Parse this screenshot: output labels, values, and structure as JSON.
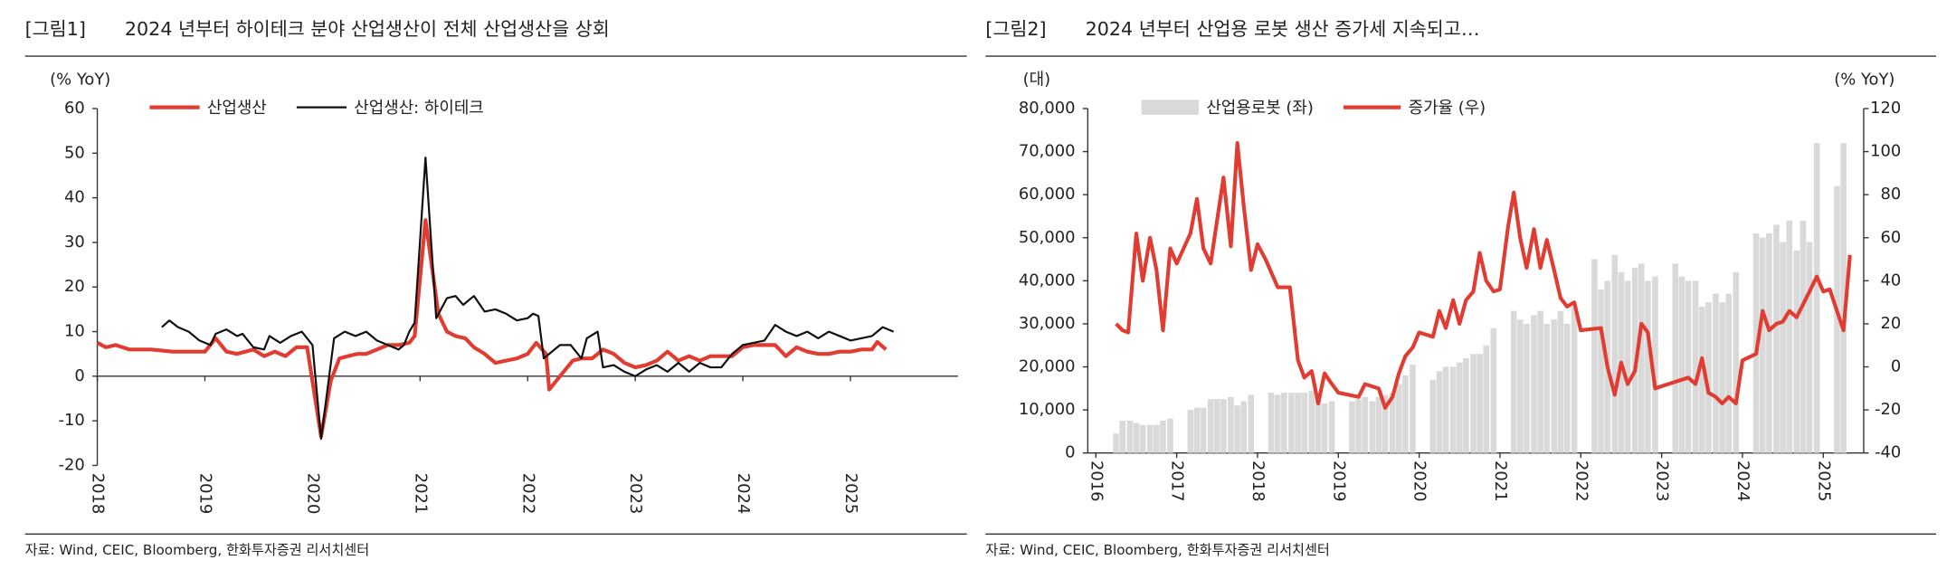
{
  "chart_data": [
    {
      "type": "line",
      "label": "[그림1]",
      "title": "2024 년부터 하이테크 분야 산업생산이 전체 산업생산을 상회",
      "y_label": "(% YoY)",
      "source": "자료: Wind, CEIC, Bloomberg, 한화투자증권 리서치센터",
      "xlim": [
        2018,
        2026
      ],
      "xticks": [
        2018,
        2019,
        2020,
        2021,
        2022,
        2023,
        2024,
        2025
      ],
      "ylim": [
        -20,
        60
      ],
      "yticks": [
        -20,
        -10,
        0,
        10,
        20,
        30,
        40,
        50,
        60
      ],
      "series": [
        {
          "name": "산업생산",
          "color": "#e03c31",
          "type": "line",
          "x": [
            2018.0,
            2018.08,
            2018.17,
            2018.3,
            2018.5,
            2018.7,
            2018.9,
            2019.0,
            2019.1,
            2019.2,
            2019.3,
            2019.45,
            2019.55,
            2019.65,
            2019.75,
            2019.85,
            2019.95,
            2020.08,
            2020.17,
            2020.25,
            2020.33,
            2020.42,
            2020.5,
            2020.6,
            2020.7,
            2020.8,
            2020.9,
            2020.95,
            2021.05,
            2021.17,
            2021.25,
            2021.33,
            2021.42,
            2021.5,
            2021.6,
            2021.7,
            2021.8,
            2021.9,
            2022.0,
            2022.08,
            2022.17,
            2022.2,
            2022.3,
            2022.42,
            2022.5,
            2022.6,
            2022.7,
            2022.8,
            2022.9,
            2023.0,
            2023.1,
            2023.2,
            2023.3,
            2023.4,
            2023.5,
            2023.6,
            2023.7,
            2023.8,
            2023.9,
            2024.0,
            2024.1,
            2024.2,
            2024.3,
            2024.4,
            2024.5,
            2024.6,
            2024.7,
            2024.8,
            2024.9,
            2025.0,
            2025.1,
            2025.2,
            2025.25,
            2025.33
          ],
          "values": [
            7.5,
            6.5,
            7,
            6,
            6,
            5.5,
            5.5,
            5.5,
            8.5,
            5.5,
            5,
            6,
            4.5,
            5.5,
            4.5,
            6.5,
            6.5,
            -13.5,
            -1,
            4,
            4.5,
            5,
            5,
            6,
            7,
            7,
            7.5,
            9,
            35,
            14,
            10,
            9,
            8.5,
            6.5,
            5,
            3,
            3.5,
            4,
            5,
            7.5,
            5,
            -3,
            0,
            3.5,
            4,
            4,
            6,
            5,
            3,
            2,
            2.5,
            3.5,
            5.5,
            3.5,
            4.5,
            3.5,
            4.5,
            4.5,
            4.5,
            6.5,
            7,
            7,
            7,
            4.5,
            6.5,
            5.5,
            5,
            5,
            5.5,
            5.5,
            6,
            6,
            7.7,
            6
          ]
        },
        {
          "name": "산업생산: 하이테크",
          "color": "#111111",
          "type": "line",
          "x": [
            2018.6,
            2018.67,
            2018.75,
            2018.85,
            2018.95,
            2019.05,
            2019.1,
            2019.2,
            2019.3,
            2019.35,
            2019.45,
            2019.55,
            2019.6,
            2019.7,
            2019.8,
            2019.9,
            2020.0,
            2020.08,
            2020.2,
            2020.3,
            2020.4,
            2020.5,
            2020.6,
            2020.7,
            2020.8,
            2020.85,
            2020.9,
            2020.95,
            2021.05,
            2021.15,
            2021.25,
            2021.33,
            2021.4,
            2021.5,
            2021.6,
            2021.7,
            2021.8,
            2021.9,
            2022.0,
            2022.05,
            2022.1,
            2022.15,
            2022.3,
            2022.4,
            2022.5,
            2022.55,
            2022.65,
            2022.7,
            2022.8,
            2022.9,
            2023.0,
            2023.1,
            2023.2,
            2023.3,
            2023.4,
            2023.5,
            2023.6,
            2023.7,
            2023.8,
            2023.9,
            2024.0,
            2024.1,
            2024.2,
            2024.3,
            2024.4,
            2024.5,
            2024.6,
            2024.7,
            2024.8,
            2024.9,
            2025.0,
            2025.1,
            2025.2,
            2025.3,
            2025.4
          ],
          "values": [
            11,
            12.5,
            11,
            10,
            8,
            7,
            9.5,
            10.5,
            9,
            9.5,
            6.5,
            6,
            9,
            7.5,
            9,
            10,
            7,
            -14,
            8.5,
            10,
            9,
            10,
            8,
            7,
            6,
            7,
            10,
            12,
            49,
            13,
            17.5,
            18,
            16,
            18,
            14.5,
            15,
            14,
            12.5,
            13,
            14,
            13.5,
            4,
            7,
            7,
            4,
            8.5,
            10,
            2,
            2.5,
            1,
            0,
            1.5,
            2.5,
            1,
            3,
            1,
            3,
            2,
            2,
            5,
            7,
            7.5,
            8,
            11.5,
            10,
            9,
            10,
            8.5,
            10,
            9,
            8,
            8.5,
            9,
            11,
            10
          ]
        }
      ]
    },
    {
      "type": "combo",
      "label": "[그림2]",
      "title": "2024 년부터 산업용 로봇 생산 증가세 지속되고…",
      "y_label": "(대)",
      "y2_label": "(% YoY)",
      "source": "자료: Wind, CEIC, Bloomberg, 한화투자증권 리서치센터",
      "xlim": [
        2015.9,
        2025.5
      ],
      "xticks": [
        2016,
        2017,
        2018,
        2019,
        2020,
        2021,
        2022,
        2023,
        2024,
        2025
      ],
      "ylim": [
        0,
        80000
      ],
      "yticks": [
        0,
        {
          "value": 10000,
          "label": "10,000"
        },
        {
          "value": 20000,
          "label": "20,000"
        },
        {
          "value": 30000,
          "label": "30,000"
        },
        {
          "value": 40000,
          "label": "40,000"
        },
        {
          "value": 50000,
          "label": "50,000"
        },
        {
          "value": 60000,
          "label": "60,000"
        },
        {
          "value": 70000,
          "label": "70,000"
        },
        {
          "value": 80000,
          "label": "80,000"
        }
      ],
      "y2lim": [
        -40,
        120
      ],
      "y2ticks": [
        -40,
        -20,
        0,
        20,
        40,
        60,
        80,
        100,
        120
      ],
      "series": [
        {
          "name": "산업용로봇 (좌)",
          "color": "#d9d9d9",
          "type": "bar",
          "x": [
            2016.25,
            2016.33,
            2016.42,
            2016.5,
            2016.58,
            2016.67,
            2016.75,
            2016.83,
            2016.92,
            2017.17,
            2017.25,
            2017.33,
            2017.42,
            2017.5,
            2017.58,
            2017.67,
            2017.75,
            2017.83,
            2017.92,
            2018.17,
            2018.25,
            2018.33,
            2018.42,
            2018.5,
            2018.58,
            2018.67,
            2018.75,
            2018.83,
            2018.92,
            2019.17,
            2019.25,
            2019.33,
            2019.42,
            2019.5,
            2019.58,
            2019.67,
            2019.75,
            2019.83,
            2019.92,
            2020.17,
            2020.25,
            2020.33,
            2020.42,
            2020.5,
            2020.58,
            2020.67,
            2020.75,
            2020.83,
            2020.92,
            2021.17,
            2021.25,
            2021.33,
            2021.42,
            2021.5,
            2021.58,
            2021.67,
            2021.75,
            2021.83,
            2021.92,
            2022.17,
            2022.25,
            2022.33,
            2022.42,
            2022.5,
            2022.58,
            2022.67,
            2022.75,
            2022.83,
            2022.92,
            2023.17,
            2023.25,
            2023.33,
            2023.42,
            2023.5,
            2023.58,
            2023.67,
            2023.75,
            2023.83,
            2023.92,
            2024.17,
            2024.25,
            2024.33,
            2024.42,
            2024.5,
            2024.58,
            2024.67,
            2024.75,
            2024.83,
            2024.92,
            2025.17,
            2025.25
          ],
          "values": [
            4500,
            7500,
            7500,
            7000,
            6500,
            6500,
            6500,
            7500,
            8000,
            10000,
            10500,
            10500,
            12500,
            12500,
            12500,
            13000,
            11000,
            12000,
            13500,
            14000,
            13500,
            14000,
            14000,
            14000,
            14000,
            14500,
            12500,
            11500,
            12000,
            12000,
            12500,
            13000,
            12000,
            13000,
            13500,
            14000,
            16000,
            18000,
            20500,
            17000,
            19000,
            20000,
            20000,
            21000,
            22000,
            23000,
            23000,
            25000,
            29000,
            33000,
            31000,
            30000,
            32000,
            33000,
            30000,
            31000,
            33000,
            30000,
            34000,
            45000,
            38000,
            40000,
            46000,
            42000,
            40000,
            43000,
            44000,
            40000,
            41000,
            44000,
            41000,
            40000,
            40000,
            34000,
            35000,
            37000,
            35000,
            37000,
            42000,
            51000,
            50000,
            51000,
            53000,
            49000,
            54000,
            47000,
            54000,
            49000,
            72000,
            62000,
            72000
          ]
        },
        {
          "name": "증가율 (우)",
          "color": "#e03c31",
          "type": "line",
          "axis": "y2",
          "x": [
            2016.25,
            2016.33,
            2016.4,
            2016.5,
            2016.58,
            2016.67,
            2016.75,
            2016.83,
            2016.92,
            2017.0,
            2017.17,
            2017.25,
            2017.33,
            2017.42,
            2017.58,
            2017.67,
            2017.75,
            2017.83,
            2017.92,
            2018.0,
            2018.1,
            2018.25,
            2018.4,
            2018.5,
            2018.58,
            2018.67,
            2018.75,
            2018.83,
            2018.92,
            2019.0,
            2019.25,
            2019.33,
            2019.5,
            2019.58,
            2019.67,
            2019.75,
            2019.83,
            2019.92,
            2020.0,
            2020.17,
            2020.25,
            2020.33,
            2020.42,
            2020.5,
            2020.58,
            2020.67,
            2020.75,
            2020.83,
            2020.92,
            2021.0,
            2021.1,
            2021.17,
            2021.25,
            2021.33,
            2021.42,
            2021.5,
            2021.58,
            2021.67,
            2021.75,
            2021.83,
            2021.92,
            2022.0,
            2022.25,
            2022.33,
            2022.42,
            2022.5,
            2022.58,
            2022.67,
            2022.75,
            2022.83,
            2022.92,
            2023.0,
            2023.33,
            2023.42,
            2023.5,
            2023.58,
            2023.67,
            2023.75,
            2023.83,
            2023.92,
            2024.0,
            2024.17,
            2024.25,
            2024.33,
            2024.42,
            2024.5,
            2024.58,
            2024.67,
            2024.83,
            2024.92,
            2025.0,
            2025.08,
            2025.17,
            2025.25,
            2025.33
          ],
          "values": [
            20,
            17,
            16,
            62,
            40,
            60,
            45,
            17,
            55,
            48,
            62,
            78,
            55,
            48,
            88,
            56,
            104,
            75,
            45,
            57,
            50,
            37,
            37,
            3,
            -5,
            -2,
            -17,
            -3,
            -8,
            -12,
            -14,
            -8,
            -10,
            -19,
            -14,
            -3,
            5,
            9,
            16,
            14,
            26,
            18,
            31,
            20,
            31,
            35,
            53,
            40,
            35,
            36,
            65,
            81,
            60,
            46,
            64,
            46,
            59,
            45,
            32,
            28,
            30,
            17,
            18,
            0,
            -13,
            2,
            -8,
            -2,
            20,
            16,
            -10,
            -9,
            -5,
            -8,
            4,
            -12,
            -14,
            -17,
            -14,
            -17,
            3,
            6,
            26,
            17,
            20,
            21,
            26,
            23,
            35,
            42,
            35,
            36,
            26,
            17,
            52
          ]
        }
      ]
    }
  ]
}
